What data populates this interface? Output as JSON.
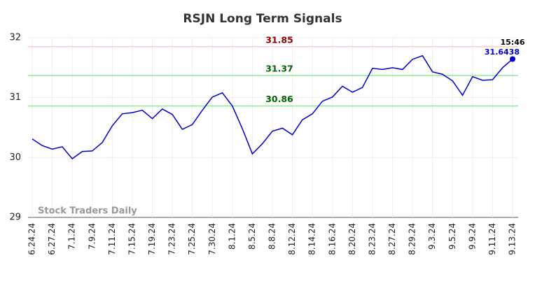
{
  "chart_data": {
    "type": "line",
    "title": "RSJN Long Term Signals",
    "categories": [
      "6.24.24",
      null,
      "6.27.24",
      null,
      "7.1.24",
      null,
      "7.9.24",
      null,
      "7.11.24",
      null,
      "7.15.24",
      null,
      "7.19.24",
      null,
      "7.23.24",
      null,
      "7.25.24",
      null,
      "7.30.24",
      null,
      "8.1.24",
      null,
      "8.5.24",
      null,
      "8.8.24",
      null,
      "8.12.24",
      null,
      "8.14.24",
      null,
      "8.16.24",
      null,
      "8.20.24",
      null,
      "8.23.24",
      null,
      "8.27.24",
      null,
      "8.29.24",
      null,
      "9.3.24",
      null,
      "9.5.24",
      null,
      "9.9.24",
      null,
      "9.11.24",
      null,
      "9.13.24"
    ],
    "values": [
      30.31,
      30.2,
      30.14,
      30.18,
      29.98,
      30.1,
      30.11,
      30.25,
      30.53,
      30.73,
      30.75,
      30.79,
      30.65,
      30.81,
      30.72,
      30.47,
      30.55,
      30.79,
      31.01,
      31.08,
      30.86,
      30.48,
      30.06,
      30.23,
      30.44,
      30.49,
      30.38,
      30.63,
      30.73,
      30.94,
      31.01,
      31.19,
      31.09,
      31.17,
      31.49,
      31.47,
      31.5,
      31.47,
      31.64,
      31.7,
      31.43,
      31.39,
      31.28,
      31.04,
      31.35,
      31.29,
      31.3,
      31.5,
      31.6438
    ],
    "color": "#0000cc",
    "ylim": [
      29,
      32
    ],
    "yticks": [
      29,
      30,
      31,
      32
    ],
    "grid": true,
    "hlines": [
      {
        "value": 31.85,
        "color": "#ffcccc",
        "label_color": "#8b0000"
      },
      {
        "value": 31.37,
        "color": "#90ee90",
        "label_color": "#006400"
      },
      {
        "value": 30.86,
        "color": "#90ee90",
        "label_color": "#006400"
      }
    ],
    "last_time": "15:46",
    "watermark": "Stock Traders Daily"
  }
}
